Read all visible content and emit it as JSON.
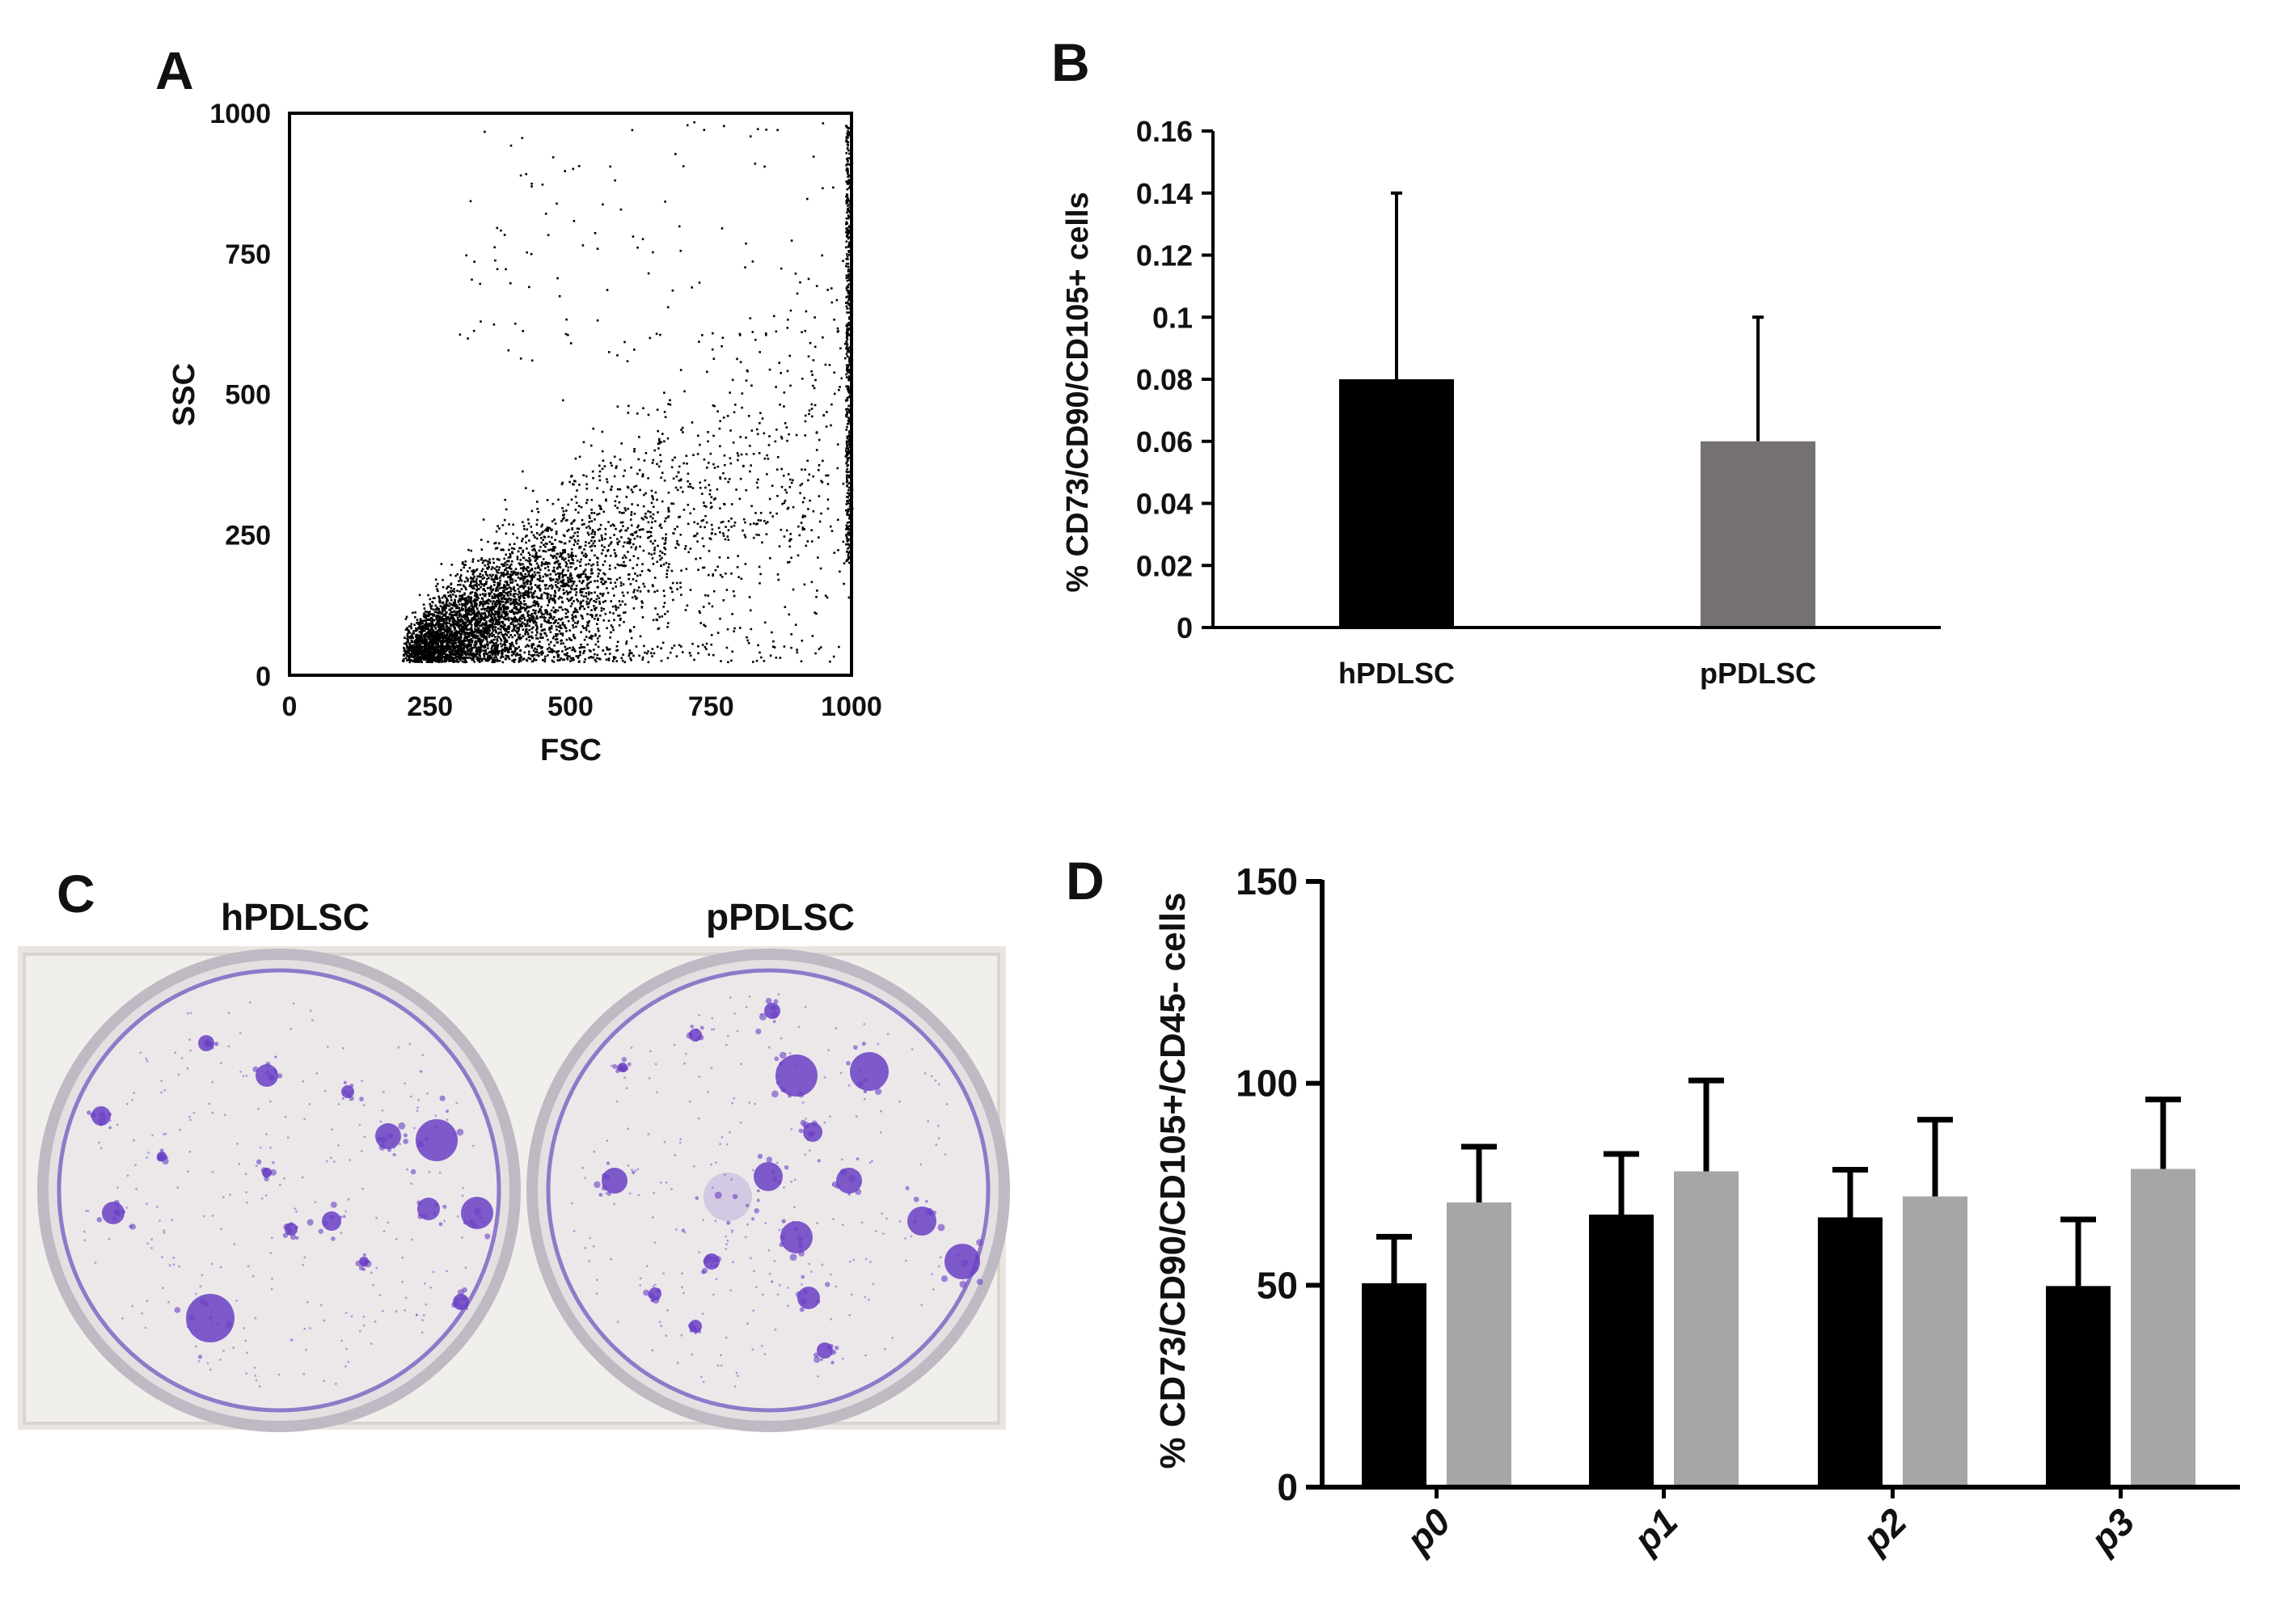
{
  "figure": {
    "panel_letters": [
      "A",
      "B",
      "C",
      "D"
    ],
    "colors": {
      "black": "#000000",
      "dark_gray": "#767171",
      "light_gray": "#a6a6a6",
      "stain": "#6a3fc4",
      "plate_bg": "#ece8ea"
    }
  },
  "panel_c": {
    "labels": [
      "hPDLSC",
      "pPDLSC"
    ]
  },
  "chart_data": [
    {
      "panel": "A",
      "type": "scatter",
      "xlabel": "FSC",
      "ylabel": "SSC",
      "xlim": [
        0,
        1000
      ],
      "ylim": [
        0,
        1000
      ],
      "xticks": [
        "0",
        "250",
        "500",
        "750",
        "1000"
      ],
      "yticks": [
        "0",
        "250",
        "500",
        "750",
        "1000"
      ],
      "distribution": {
        "x_min": 200,
        "x_max": 1000,
        "y_at_x_min_center": 40,
        "y_slope": 0.42,
        "cluster_center": [
          400,
          180
        ],
        "approx_points": 5000
      }
    },
    {
      "panel": "B",
      "type": "bar",
      "ylabel": "% CD73/CD90/CD105+ cells",
      "ylim": [
        0,
        0.16
      ],
      "yticks": [
        "0",
        "0.02",
        "0.04",
        "0.06",
        "0.08",
        "0.1",
        "0.12",
        "0.14",
        "0.16"
      ],
      "categories": [
        "hPDLSC",
        "pPDLSC"
      ],
      "values": [
        0.08,
        0.06
      ],
      "errors": [
        0.06,
        0.04
      ],
      "bar_colors": [
        "#000000",
        "#767171"
      ]
    },
    {
      "panel": "D",
      "type": "bar",
      "ylabel": "% CD73/CD90/CD105+/CD45- cells",
      "ylim": [
        0,
        150
      ],
      "yticks": [
        "0",
        "50",
        "100",
        "150"
      ],
      "categories": [
        "p0",
        "p1",
        "p2",
        "p3"
      ],
      "series": [
        {
          "values": [
            50.5,
            67.5,
            66.8,
            49.8
          ],
          "errors": [
            11.5,
            15,
            11.8,
            16.5
          ],
          "color": "#000000"
        },
        {
          "values": [
            70.5,
            78.2,
            72,
            78.8
          ],
          "errors": [
            13.8,
            22.5,
            19,
            17.2
          ],
          "color": "#a6a6a6"
        }
      ]
    }
  ]
}
